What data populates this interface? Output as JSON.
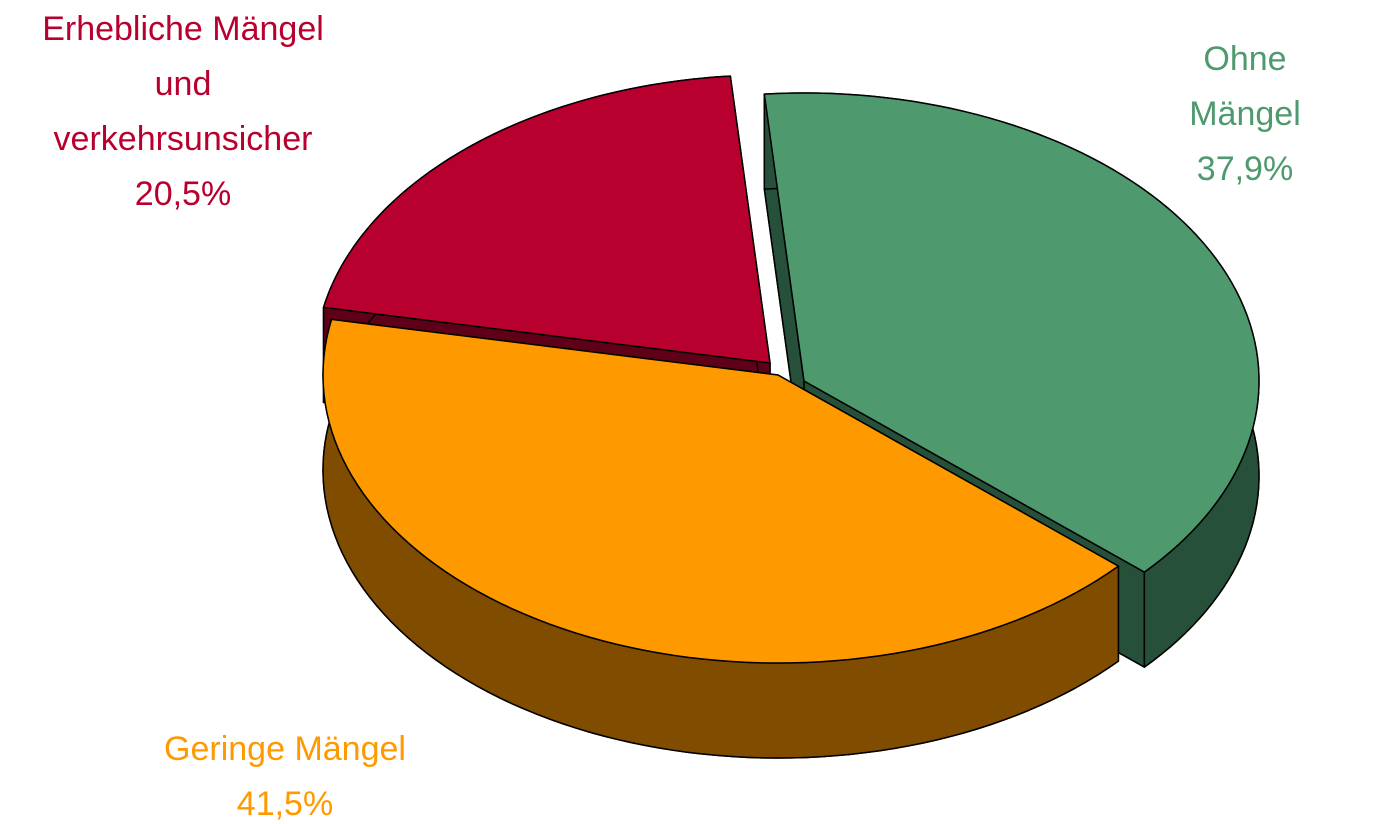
{
  "chart_data": {
    "type": "pie",
    "categories": [
      "Ohne Mängel",
      "Geringe Mängel",
      "Erhebliche Mängel\nund\nverkehrsunsicher"
    ],
    "values": [
      37.9,
      41.5,
      20.5
    ],
    "value_labels": [
      "37,9%",
      "41,5%",
      "20,5%"
    ],
    "colors": [
      "#4e9a6e",
      "#ff9900",
      "#b8002e"
    ],
    "side_colors": [
      "#27503a",
      "#7f4c00",
      "#5e0018"
    ]
  }
}
